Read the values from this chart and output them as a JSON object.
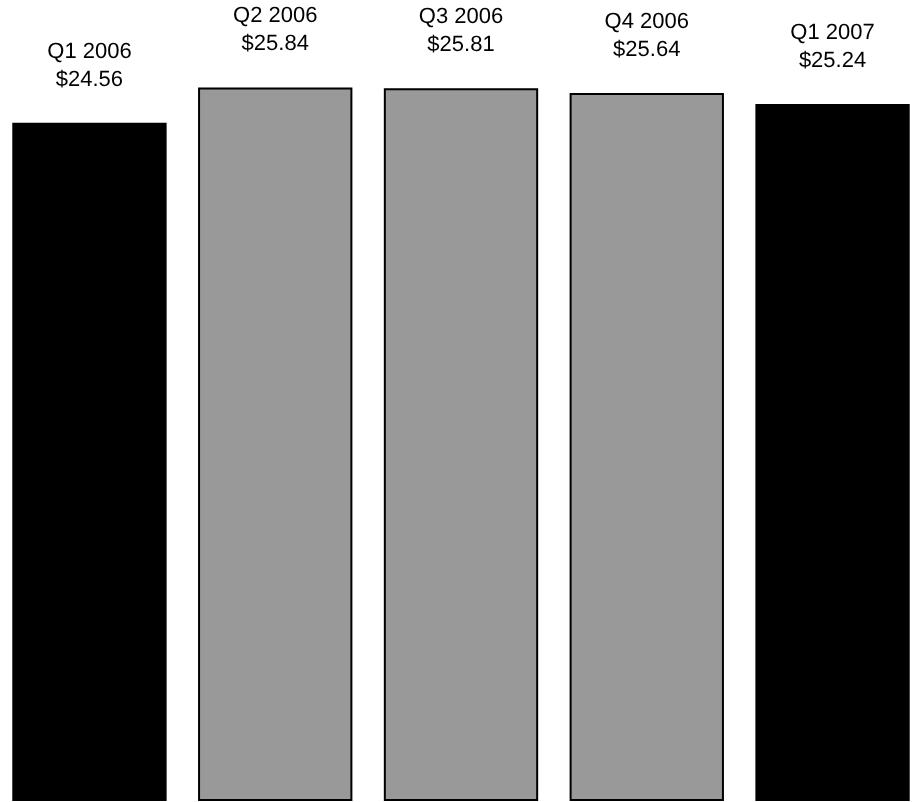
{
  "chart_data": {
    "type": "bar",
    "categories": [
      "Q1 2006",
      "Q2 2006",
      "Q3 2006",
      "Q4 2006",
      "Q1 2007"
    ],
    "values": [
      24.56,
      25.84,
      25.81,
      25.64,
      25.24
    ],
    "colors": [
      "#000000",
      "#999999",
      "#999999",
      "#999999",
      "#000000"
    ],
    "value_labels": [
      "$24.56",
      "$25.84",
      "$25.81",
      "$25.64",
      "$25.24"
    ]
  }
}
